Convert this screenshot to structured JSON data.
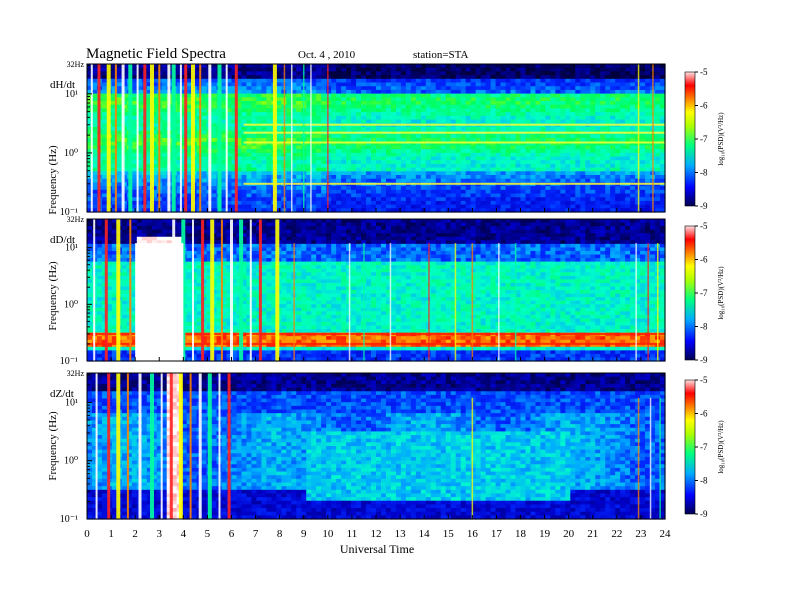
{
  "header": {
    "title": "Magnetic  Field  Spectra",
    "date": "Oct. 4  , 2010",
    "station": "station=STA"
  },
  "colorbar": {
    "label": "log₁₀(PSD)(V²/Hz)",
    "ticks": [
      "-5",
      "-6",
      "-7",
      "-8",
      "-9"
    ]
  },
  "chart_data": [
    {
      "type": "heatmap",
      "panel_label": "dH/dt",
      "ylabel": "Frequency  (Hz)",
      "y_scale": "log",
      "ylim_hz": [
        0.1,
        32
      ],
      "y_ticks": [
        "32Hz",
        "10¹",
        "10⁰",
        "10⁻¹"
      ],
      "xlim_hours": [
        0,
        24
      ],
      "color_range": [
        -9,
        -5
      ],
      "broadband_bursts_ut": [
        0.2,
        0.5,
        0.9,
        1.2,
        1.5,
        1.8,
        2.1,
        2.4,
        2.7,
        3.0,
        3.4,
        3.6,
        3.9,
        4.1,
        4.4,
        4.7,
        5.1,
        5.5,
        5.8,
        6.2,
        7.8,
        8.2,
        8.5,
        9.0,
        9.3,
        10.0,
        22.9,
        23.5
      ],
      "narrowband_lines_hz": [
        1.5,
        2.2,
        3.0,
        0.3
      ]
    },
    {
      "type": "heatmap",
      "panel_label": "dD/dt",
      "ylabel": "Frequency  (Hz)",
      "y_scale": "log",
      "ylim_hz": [
        0.1,
        32
      ],
      "y_ticks": [
        "32Hz",
        "10¹",
        "10⁰",
        "10⁻¹"
      ],
      "xlim_hours": [
        0,
        24
      ],
      "color_range": [
        -9,
        -5
      ],
      "saturated_interval_ut": [
        2.0,
        4.0
      ],
      "broadband_bursts_ut": [
        0.3,
        0.8,
        1.3,
        1.8,
        3.6,
        4.0,
        4.4,
        4.8,
        5.2,
        5.6,
        6.0,
        6.4,
        6.8,
        7.2,
        7.9,
        8.6,
        10.9,
        11.5,
        12.6,
        14.2,
        15.3,
        16.0,
        17.1,
        17.8,
        22.8,
        23.3,
        23.7
      ],
      "narrowband_lines_hz": [
        0.2,
        0.3
      ]
    },
    {
      "type": "heatmap",
      "panel_label": "dZ/dt",
      "ylabel": "Frequency  (Hz)",
      "y_scale": "log",
      "ylim_hz": [
        0.1,
        32
      ],
      "y_ticks": [
        "32Hz",
        "10¹",
        "10⁰",
        "10⁻¹"
      ],
      "xlim_hours": [
        0,
        24
      ],
      "color_range": [
        -9,
        -5
      ],
      "broadband_bursts_ut": [
        0.4,
        0.9,
        1.3,
        1.7,
        2.2,
        2.7,
        3.1,
        3.5,
        3.9,
        4.3,
        4.7,
        5.1,
        5.5,
        5.9,
        16.0,
        22.9,
        23.4,
        23.8
      ]
    }
  ],
  "xaxis": {
    "label": "Universal  Time",
    "ticks": [
      "0",
      "1",
      "2",
      "3",
      "4",
      "5",
      "6",
      "7",
      "8",
      "9",
      "10",
      "11",
      "12",
      "13",
      "14",
      "15",
      "16",
      "17",
      "18",
      "19",
      "20",
      "21",
      "22",
      "23",
      "24"
    ]
  },
  "colors": {
    "scale": [
      "#000040",
      "#0000ff",
      "#00c8ff",
      "#00ff80",
      "#ffff00",
      "#ff8000",
      "#ff0000",
      "#ffc8c8",
      "#ffffff"
    ]
  }
}
